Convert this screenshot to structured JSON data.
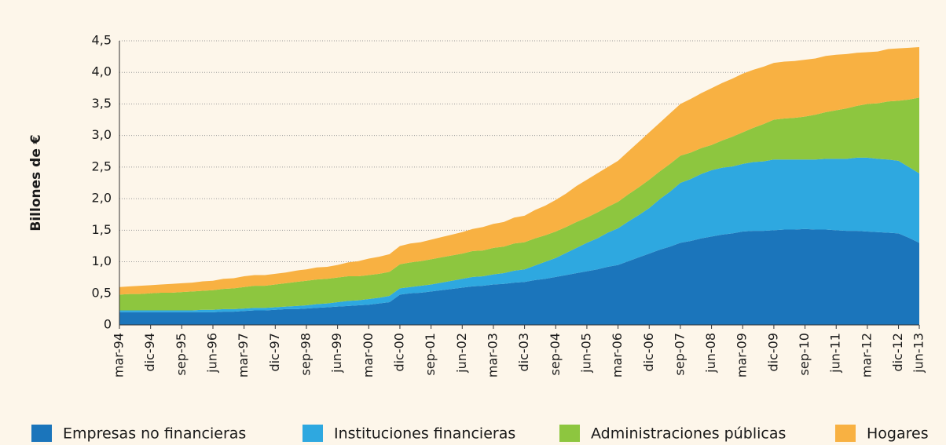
{
  "chart_data": {
    "type": "stacked_area",
    "y_label": "Billones de €",
    "categories": [
      "mar-94",
      null,
      null,
      "dic-94",
      null,
      null,
      "sep-95",
      null,
      null,
      "jun-96",
      null,
      null,
      "mar-97",
      null,
      null,
      "dic-97",
      null,
      null,
      "sep-98",
      null,
      null,
      "jun-99",
      null,
      null,
      "mar-00",
      null,
      null,
      "dic-00",
      null,
      null,
      "sep-01",
      null,
      null,
      "jun-02",
      null,
      null,
      "mar-03",
      null,
      null,
      "dic-03",
      null,
      null,
      "sep-04",
      null,
      null,
      "jun-05",
      null,
      null,
      "mar-06",
      null,
      null,
      "dic-06",
      null,
      null,
      "sep-07",
      null,
      null,
      "jun-08",
      null,
      null,
      "mar-09",
      null,
      null,
      "dic-09",
      null,
      null,
      "sep-10",
      null,
      null,
      "jun-11",
      null,
      null,
      "mar-12",
      null,
      null,
      "dic-12",
      null,
      "jun-13"
    ],
    "series": [
      {
        "name": "Empresas no financieras",
        "color": "#1b75bb",
        "values": [
          0.2,
          0.2,
          0.2,
          0.2,
          0.2,
          0.2,
          0.2,
          0.2,
          0.2,
          0.2,
          0.21,
          0.21,
          0.22,
          0.23,
          0.23,
          0.24,
          0.25,
          0.25,
          0.26,
          0.27,
          0.28,
          0.29,
          0.3,
          0.31,
          0.32,
          0.34,
          0.36,
          0.48,
          0.5,
          0.51,
          0.53,
          0.55,
          0.57,
          0.59,
          0.61,
          0.62,
          0.64,
          0.65,
          0.67,
          0.68,
          0.71,
          0.73,
          0.76,
          0.79,
          0.82,
          0.85,
          0.88,
          0.92,
          0.95,
          1.01,
          1.07,
          1.13,
          1.19,
          1.24,
          1.3,
          1.33,
          1.37,
          1.4,
          1.43,
          1.45,
          1.48,
          1.49,
          1.49,
          1.5,
          1.51,
          1.51,
          1.52,
          1.51,
          1.51,
          1.5,
          1.49,
          1.49,
          1.48,
          1.47,
          1.46,
          1.45,
          1.38,
          1.3
        ]
      },
      {
        "name": "Instituciones financieras",
        "color": "#2ea8e0",
        "values": [
          0.03,
          0.03,
          0.03,
          0.03,
          0.03,
          0.03,
          0.03,
          0.03,
          0.04,
          0.04,
          0.04,
          0.04,
          0.04,
          0.04,
          0.04,
          0.04,
          0.04,
          0.05,
          0.05,
          0.06,
          0.06,
          0.07,
          0.08,
          0.08,
          0.09,
          0.09,
          0.1,
          0.1,
          0.1,
          0.11,
          0.11,
          0.12,
          0.13,
          0.14,
          0.15,
          0.15,
          0.16,
          0.17,
          0.19,
          0.2,
          0.23,
          0.27,
          0.3,
          0.35,
          0.4,
          0.45,
          0.49,
          0.54,
          0.58,
          0.63,
          0.67,
          0.72,
          0.8,
          0.87,
          0.95,
          0.98,
          1.02,
          1.05,
          1.06,
          1.06,
          1.07,
          1.09,
          1.1,
          1.12,
          1.11,
          1.11,
          1.1,
          1.11,
          1.12,
          1.13,
          1.14,
          1.16,
          1.17,
          1.16,
          1.16,
          1.15,
          1.12,
          1.1
        ]
      },
      {
        "name": "Administraciones públicas",
        "color": "#8dc63f",
        "values": [
          0.25,
          0.26,
          0.26,
          0.27,
          0.28,
          0.28,
          0.29,
          0.3,
          0.3,
          0.31,
          0.32,
          0.33,
          0.34,
          0.35,
          0.35,
          0.36,
          0.37,
          0.38,
          0.39,
          0.39,
          0.39,
          0.39,
          0.39,
          0.38,
          0.38,
          0.38,
          0.38,
          0.38,
          0.39,
          0.39,
          0.4,
          0.4,
          0.4,
          0.4,
          0.41,
          0.41,
          0.42,
          0.42,
          0.43,
          0.43,
          0.43,
          0.42,
          0.42,
          0.41,
          0.41,
          0.4,
          0.41,
          0.41,
          0.42,
          0.43,
          0.44,
          0.45,
          0.44,
          0.44,
          0.43,
          0.42,
          0.41,
          0.4,
          0.43,
          0.47,
          0.5,
          0.54,
          0.59,
          0.63,
          0.65,
          0.66,
          0.68,
          0.71,
          0.74,
          0.77,
          0.8,
          0.82,
          0.85,
          0.88,
          0.92,
          0.95,
          1.07,
          1.2
        ]
      },
      {
        "name": "Hogares",
        "color": "#f8b142",
        "values": [
          0.12,
          0.12,
          0.13,
          0.13,
          0.13,
          0.14,
          0.14,
          0.14,
          0.15,
          0.15,
          0.16,
          0.16,
          0.17,
          0.17,
          0.17,
          0.17,
          0.17,
          0.18,
          0.18,
          0.19,
          0.19,
          0.2,
          0.22,
          0.24,
          0.26,
          0.27,
          0.28,
          0.29,
          0.3,
          0.3,
          0.31,
          0.32,
          0.33,
          0.34,
          0.35,
          0.37,
          0.38,
          0.39,
          0.41,
          0.42,
          0.45,
          0.47,
          0.5,
          0.53,
          0.57,
          0.6,
          0.62,
          0.63,
          0.65,
          0.68,
          0.72,
          0.75,
          0.77,
          0.8,
          0.82,
          0.85,
          0.87,
          0.9,
          0.91,
          0.92,
          0.93,
          0.92,
          0.91,
          0.9,
          0.9,
          0.9,
          0.9,
          0.89,
          0.89,
          0.88,
          0.86,
          0.84,
          0.82,
          0.82,
          0.83,
          0.83,
          0.82,
          0.8
        ]
      }
    ],
    "ylim": [
      0,
      4.5
    ],
    "yticks": [
      0,
      {
        "value": 0.5,
        "label": "0,5"
      },
      {
        "value": 1,
        "label": "1,0"
      },
      {
        "value": 1.5,
        "label": "1,5"
      },
      {
        "value": 2,
        "label": "2,0"
      },
      {
        "value": 2.5,
        "label": "2,5"
      },
      {
        "value": 3,
        "label": "3,0"
      },
      {
        "value": 3.5,
        "label": "3,5"
      },
      {
        "value": 4,
        "label": "4,0"
      },
      {
        "value": 4.5,
        "label": "4,5"
      }
    ],
    "grid": true,
    "legend": "bottom"
  }
}
